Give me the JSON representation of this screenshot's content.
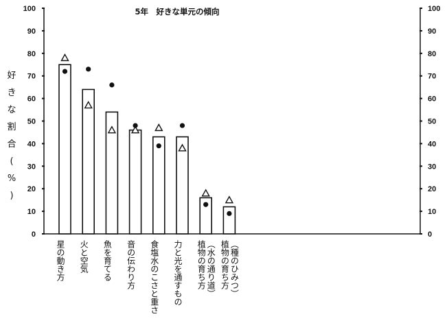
{
  "chart_data": {
    "type": "bar",
    "title": "5年　好きな単元の傾向",
    "ylabel": "好きな割合(%)",
    "ylim": [
      0,
      100
    ],
    "yticks": [
      0,
      10,
      20,
      30,
      40,
      50,
      60,
      70,
      80,
      90,
      100
    ],
    "categories": [
      "星の動き方",
      "火と空気",
      "魚を育てる",
      "音の伝わり方",
      "食塩水のこさと重さ",
      "力と光を通すもの",
      "植物の育ち方（水の通り道）",
      "植物の育ち方（種のひみつ）"
    ],
    "series": [
      {
        "values": [
          75,
          64,
          54,
          46,
          43,
          43,
          16,
          12
        ]
      },
      {
        "values": [
          78,
          57,
          46,
          46,
          47,
          38,
          18,
          15
        ]
      },
      {
        "values": [
          72,
          73,
          66,
          48,
          39,
          48,
          13,
          9
        ]
      }
    ],
    "grid": false
  }
}
